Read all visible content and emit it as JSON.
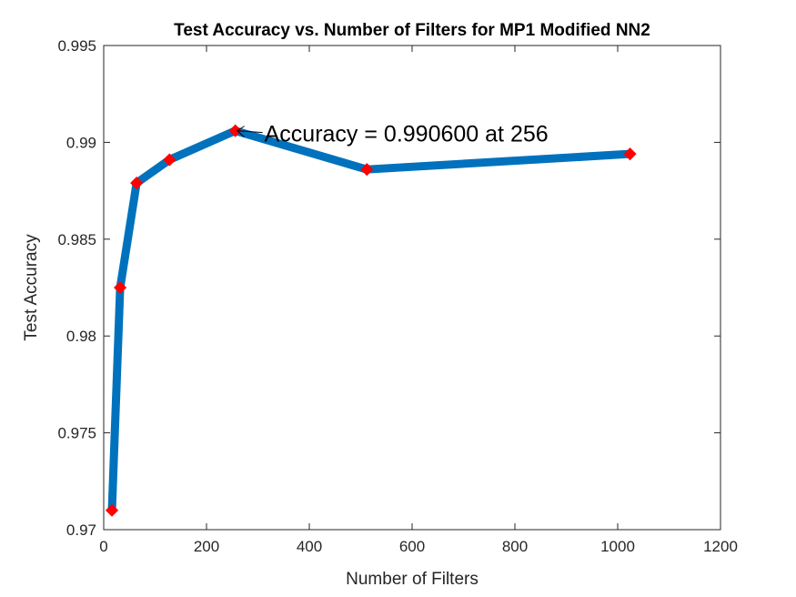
{
  "chart_data": {
    "type": "line",
    "title": "Test Accuracy vs. Number of Filters for MP1 Modified NN2",
    "xlabel": "Number of Filters",
    "ylabel": "Test Accuracy",
    "xlim": [
      0,
      1200
    ],
    "ylim": [
      0.97,
      0.995
    ],
    "xticks": [
      0,
      200,
      400,
      600,
      800,
      1000,
      1200
    ],
    "xtick_labels": [
      "0",
      "200",
      "400",
      "600",
      "800",
      "1000",
      "1200"
    ],
    "yticks": [
      0.97,
      0.975,
      0.98,
      0.985,
      0.99,
      0.995
    ],
    "ytick_labels": [
      "0.97",
      "0.975",
      "0.98",
      "0.985",
      "0.99",
      "0.995"
    ],
    "grid": false,
    "series": [
      {
        "x": [
          16,
          32,
          64,
          128,
          256,
          512,
          1024
        ],
        "y": [
          0.971,
          0.9825,
          0.9879,
          0.9891,
          0.9906,
          0.9886,
          0.9894
        ],
        "line_color": "#0072BD",
        "marker_color": "#FF0000",
        "marker": "diamond"
      }
    ],
    "annotations": [
      {
        "text": "Accuracy = 0.990600 at 256",
        "x": 256,
        "y": 0.9906
      }
    ]
  }
}
